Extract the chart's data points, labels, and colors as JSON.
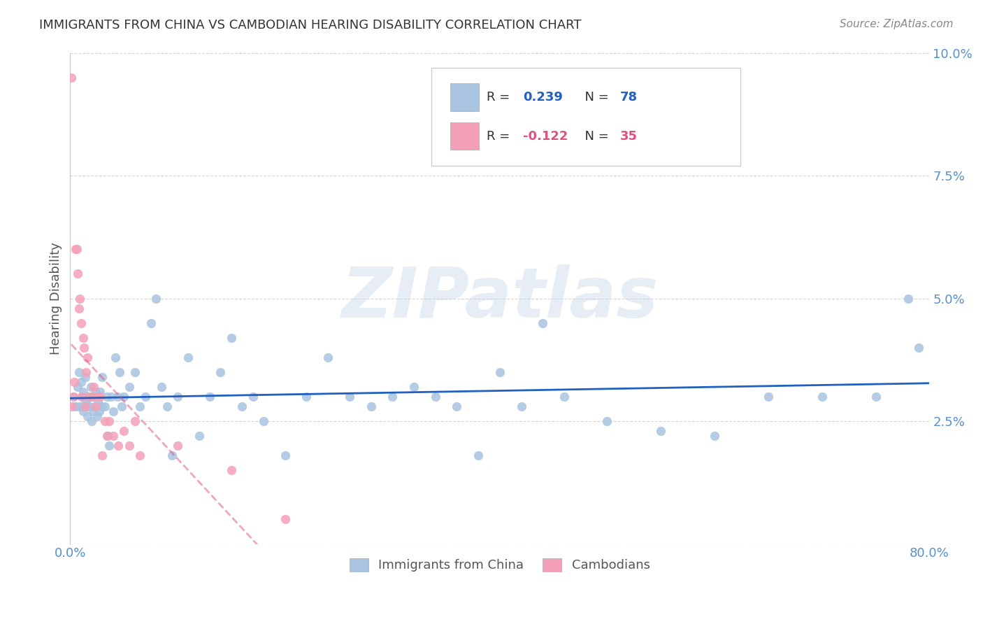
{
  "title": "IMMIGRANTS FROM CHINA VS CAMBODIAN HEARING DISABILITY CORRELATION CHART",
  "source": "Source: ZipAtlas.com",
  "ylabel": "Hearing Disability",
  "watermark": "ZIPatlas",
  "legend_china": "Immigrants from China",
  "legend_cambodian": "Cambodians",
  "r_china": 0.239,
  "n_china": 78,
  "r_cambodian": -0.122,
  "n_cambodian": 35,
  "xlim": [
    0.0,
    0.8
  ],
  "ylim": [
    0.0,
    0.1
  ],
  "yticks": [
    0.0,
    0.025,
    0.05,
    0.075,
    0.1
  ],
  "ytick_labels": [
    "",
    "2.5%",
    "5.0%",
    "7.5%",
    "10.0%"
  ],
  "xticks": [
    0.0,
    0.1,
    0.2,
    0.3,
    0.4,
    0.5,
    0.6,
    0.7,
    0.8
  ],
  "xtick_labels": [
    "0.0%",
    "",
    "",
    "",
    "",
    "",
    "",
    "",
    "80.0%"
  ],
  "color_china": "#a8c4e0",
  "color_cambodian": "#f4a0b8",
  "line_color_china": "#2060c0",
  "line_color_cambodian": "#e05080",
  "background_color": "#ffffff",
  "grid_color": "#cccccc",
  "axis_color": "#aaaaaa",
  "tick_label_color": "#5590d0",
  "title_color": "#333333",
  "china_x": [
    0.003,
    0.005,
    0.007,
    0.008,
    0.009,
    0.01,
    0.011,
    0.012,
    0.012,
    0.013,
    0.014,
    0.015,
    0.016,
    0.017,
    0.018,
    0.019,
    0.02,
    0.021,
    0.022,
    0.023,
    0.024,
    0.025,
    0.026,
    0.027,
    0.028,
    0.029,
    0.03,
    0.032,
    0.034,
    0.035,
    0.036,
    0.038,
    0.04,
    0.042,
    0.044,
    0.046,
    0.048,
    0.05,
    0.055,
    0.06,
    0.065,
    0.07,
    0.075,
    0.08,
    0.085,
    0.09,
    0.095,
    0.1,
    0.11,
    0.12,
    0.13,
    0.14,
    0.15,
    0.16,
    0.17,
    0.18,
    0.2,
    0.22,
    0.24,
    0.26,
    0.28,
    0.3,
    0.32,
    0.34,
    0.36,
    0.38,
    0.4,
    0.42,
    0.44,
    0.46,
    0.5,
    0.55,
    0.6,
    0.65,
    0.7,
    0.75,
    0.78,
    0.79
  ],
  "china_y": [
    0.03,
    0.028,
    0.032,
    0.035,
    0.028,
    0.033,
    0.03,
    0.027,
    0.031,
    0.028,
    0.034,
    0.029,
    0.026,
    0.03,
    0.028,
    0.032,
    0.025,
    0.027,
    0.03,
    0.028,
    0.031,
    0.026,
    0.029,
    0.027,
    0.031,
    0.028,
    0.034,
    0.028,
    0.03,
    0.022,
    0.02,
    0.03,
    0.027,
    0.038,
    0.03,
    0.035,
    0.028,
    0.03,
    0.032,
    0.035,
    0.028,
    0.03,
    0.045,
    0.05,
    0.032,
    0.028,
    0.018,
    0.03,
    0.038,
    0.022,
    0.03,
    0.035,
    0.042,
    0.028,
    0.03,
    0.025,
    0.018,
    0.03,
    0.038,
    0.03,
    0.028,
    0.03,
    0.032,
    0.03,
    0.028,
    0.018,
    0.035,
    0.028,
    0.045,
    0.03,
    0.025,
    0.023,
    0.022,
    0.03,
    0.03,
    0.03,
    0.05,
    0.04
  ],
  "cambodian_x": [
    0.001,
    0.002,
    0.003,
    0.004,
    0.005,
    0.006,
    0.007,
    0.008,
    0.009,
    0.01,
    0.011,
    0.012,
    0.013,
    0.014,
    0.015,
    0.016,
    0.018,
    0.02,
    0.022,
    0.024,
    0.026,
    0.028,
    0.03,
    0.032,
    0.034,
    0.036,
    0.04,
    0.045,
    0.05,
    0.055,
    0.06,
    0.065,
    0.1,
    0.15,
    0.2
  ],
  "cambodian_y": [
    0.095,
    0.028,
    0.03,
    0.033,
    0.06,
    0.06,
    0.055,
    0.048,
    0.05,
    0.045,
    0.03,
    0.042,
    0.04,
    0.028,
    0.035,
    0.038,
    0.03,
    0.03,
    0.032,
    0.028,
    0.03,
    0.03,
    0.018,
    0.025,
    0.022,
    0.025,
    0.022,
    0.02,
    0.023,
    0.02,
    0.025,
    0.018,
    0.02,
    0.015,
    0.005
  ]
}
